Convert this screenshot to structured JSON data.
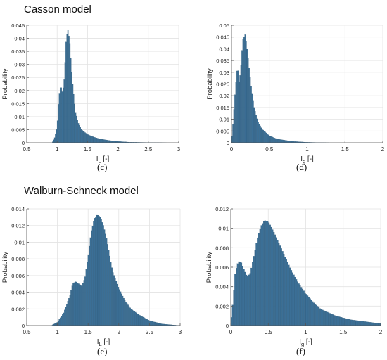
{
  "sections": [
    {
      "title": "Casson model"
    },
    {
      "title": "Walburn-Schneck model"
    }
  ],
  "captions": [
    "(c)",
    "(d)",
    "(e)",
    "(f)"
  ],
  "colors": {
    "bar": "#3b6f96",
    "bar_edge": "#2b5470",
    "grid": "#e3e3e3",
    "axis": "#555555"
  },
  "chart_data": [
    {
      "type": "bar",
      "panel": "(c)",
      "xlabel_main": "I",
      "xlabel_sub": "L",
      "xlabel_unit": "[-]",
      "ylabel": "Probability",
      "xlim": [
        0.5,
        3
      ],
      "ylim": [
        0,
        0.045
      ],
      "xticks": [
        0.5,
        1,
        1.5,
        2,
        2.5,
        3
      ],
      "yticks": [
        0,
        0.005,
        0.01,
        0.015,
        0.02,
        0.025,
        0.03,
        0.035,
        0.04,
        0.045
      ],
      "grid": true,
      "x": [
        0.92,
        0.96,
        1.0,
        1.03,
        1.06,
        1.09,
        1.12,
        1.15,
        1.18,
        1.21,
        1.25,
        1.3,
        1.35,
        1.4,
        1.5,
        1.6,
        1.7,
        1.85,
        2.0,
        2.2,
        2.5,
        2.8
      ],
      "values": [
        0.0,
        0.002,
        0.006,
        0.018,
        0.022,
        0.019,
        0.025,
        0.04,
        0.0435,
        0.038,
        0.024,
        0.012,
        0.0075,
        0.005,
        0.0032,
        0.0022,
        0.0015,
        0.0009,
        0.0005,
        0.0002,
        0.0001,
        0.0
      ]
    },
    {
      "type": "bar",
      "panel": "(d)",
      "xlabel_main": "I",
      "xlabel_sub": "g",
      "xlabel_unit": "[-]",
      "ylabel": "Probability",
      "xlim": [
        0,
        2
      ],
      "ylim": [
        0,
        0.05
      ],
      "xticks": [
        0,
        0.5,
        1,
        1.5,
        2
      ],
      "yticks": [
        0,
        0.005,
        0.01,
        0.015,
        0.02,
        0.025,
        0.03,
        0.035,
        0.04,
        0.045,
        0.05
      ],
      "grid": true,
      "x": [
        0.0,
        0.02,
        0.05,
        0.08,
        0.1,
        0.12,
        0.15,
        0.18,
        0.2,
        0.23,
        0.26,
        0.3,
        0.35,
        0.4,
        0.5,
        0.6,
        0.8,
        1.0,
        1.3,
        1.6
      ],
      "values": [
        0.0,
        0.008,
        0.022,
        0.033,
        0.026,
        0.03,
        0.044,
        0.046,
        0.042,
        0.033,
        0.024,
        0.015,
        0.009,
        0.006,
        0.003,
        0.0016,
        0.0006,
        0.0002,
        0.0,
        0.0
      ]
    },
    {
      "type": "bar",
      "panel": "(e)",
      "xlabel_main": "I",
      "xlabel_sub": "L",
      "xlabel_unit": "[-]",
      "ylabel": "Probability",
      "xlim": [
        0.5,
        3
      ],
      "ylim": [
        0,
        0.014
      ],
      "xticks": [
        0.5,
        1,
        1.5,
        2,
        2.5,
        3
      ],
      "yticks": [
        0,
        0.002,
        0.004,
        0.006,
        0.008,
        0.01,
        0.012,
        0.014
      ],
      "grid": true,
      "x": [
        0.9,
        1.0,
        1.1,
        1.2,
        1.25,
        1.3,
        1.35,
        1.4,
        1.45,
        1.5,
        1.55,
        1.6,
        1.65,
        1.7,
        1.75,
        1.8,
        1.85,
        1.9,
        2.0,
        2.1,
        2.2,
        2.35,
        2.5,
        2.7,
        3.0
      ],
      "values": [
        0.0,
        0.0004,
        0.0015,
        0.0035,
        0.005,
        0.0053,
        0.005,
        0.0047,
        0.0058,
        0.0083,
        0.0112,
        0.0128,
        0.0133,
        0.013,
        0.012,
        0.0105,
        0.0085,
        0.0065,
        0.0045,
        0.003,
        0.002,
        0.0012,
        0.0006,
        0.0002,
        0.0
      ]
    },
    {
      "type": "bar",
      "panel": "(f)",
      "xlabel_main": "I",
      "xlabel_sub": "g",
      "xlabel_unit": "[-]",
      "ylabel": "Probability",
      "xlim": [
        0,
        2
      ],
      "ylim": [
        0,
        0.012
      ],
      "xticks": [
        0,
        0.5,
        1,
        1.5,
        2
      ],
      "yticks": [
        0,
        0.002,
        0.004,
        0.006,
        0.008,
        0.01,
        0.012
      ],
      "grid": true,
      "x": [
        0.0,
        0.03,
        0.06,
        0.1,
        0.14,
        0.18,
        0.22,
        0.26,
        0.3,
        0.35,
        0.4,
        0.45,
        0.5,
        0.55,
        0.6,
        0.7,
        0.8,
        0.9,
        1.0,
        1.1,
        1.2,
        1.4,
        1.6,
        1.8,
        2.0
      ],
      "values": [
        0.0002,
        0.0025,
        0.0055,
        0.0066,
        0.0065,
        0.0057,
        0.005,
        0.0054,
        0.0068,
        0.0088,
        0.0102,
        0.0108,
        0.0107,
        0.01,
        0.0092,
        0.0075,
        0.0058,
        0.0044,
        0.0033,
        0.0024,
        0.0017,
        0.001,
        0.0006,
        0.0004,
        0.0002
      ]
    }
  ]
}
